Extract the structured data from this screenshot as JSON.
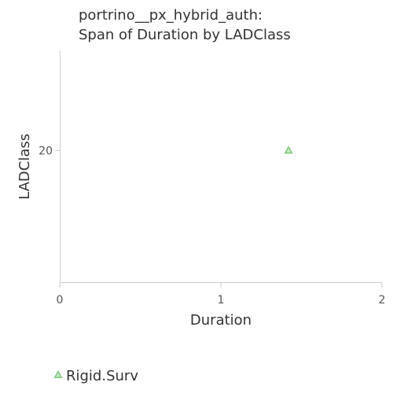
{
  "chart_data": {
    "type": "scatter",
    "title": "portrino__px_hybrid_auth:\nSpan of Duration by LADClass",
    "title_lines": [
      "portrino__px_hybrid_auth:",
      "Span of Duration by LADClass"
    ],
    "xlabel": "Duration",
    "ylabel": "LADClass",
    "xlim": [
      0,
      2
    ],
    "x_ticks": [
      "0",
      "1",
      "2"
    ],
    "y_ticks": [
      "20"
    ],
    "y_tick_values": [
      20
    ],
    "ylim": [
      16,
      23
    ],
    "grid": false,
    "legend_position": "bottom-left",
    "series": [
      {
        "name": "Rigid.Surv",
        "marker": "triangle",
        "color": "#7fc97f",
        "points": [
          {
            "x": 1.42,
            "y": 20
          }
        ]
      }
    ]
  }
}
